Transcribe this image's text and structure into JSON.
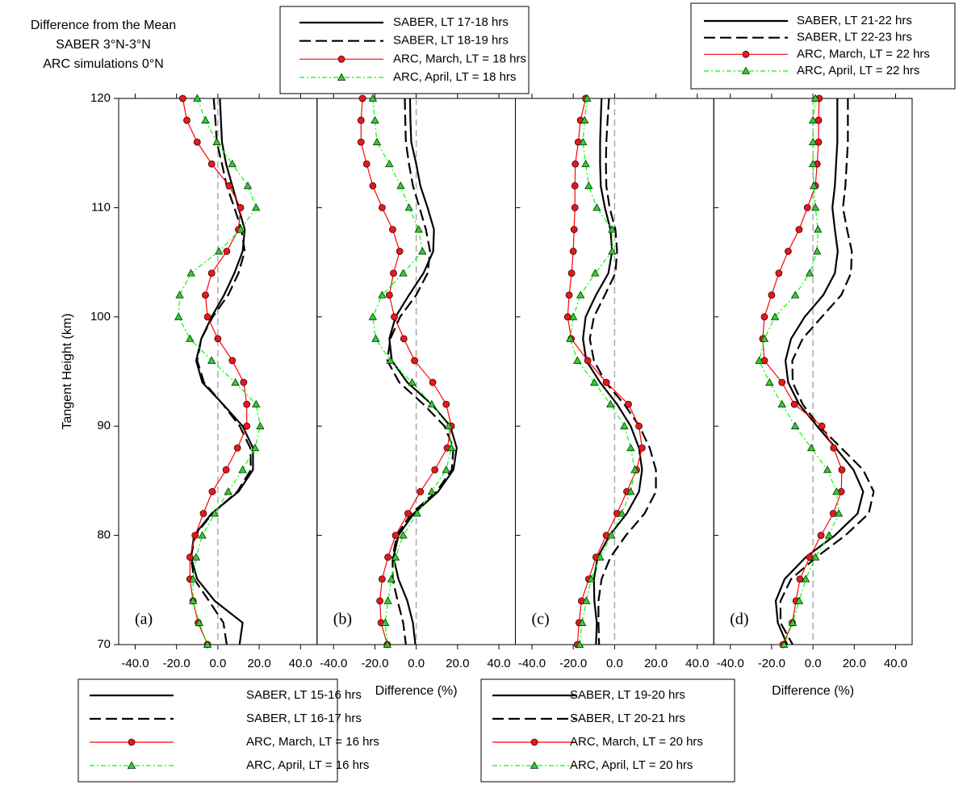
{
  "chart_data": [
    {
      "type": "line",
      "panel_label": "(a)",
      "title_lines": [
        "Difference from the Mean",
        "SABER 3°N-3°N",
        "ARC simulations 0°N"
      ],
      "ylabel": "Tangent Height (km)",
      "xlabel": "Difference (%)",
      "xlim": [
        -48,
        48
      ],
      "ylim": [
        70,
        120
      ],
      "xticks": [
        {
          "value": -40,
          "label": "-40.0"
        },
        {
          "value": -20,
          "label": "-20.0"
        },
        {
          "value": 0,
          "label": "0.0"
        },
        {
          "value": 20,
          "label": "20.0"
        },
        {
          "value": 40,
          "label": "40.0"
        }
      ],
      "yticks": [
        70,
        80,
        90,
        100,
        110,
        120
      ],
      "zero_line": true,
      "legend": "bottom",
      "y": [
        120,
        118,
        116,
        114,
        112,
        110,
        108,
        106,
        104,
        102,
        100,
        98,
        96,
        94,
        92,
        90,
        88,
        86,
        84,
        82,
        80,
        78,
        76,
        74,
        72,
        70
      ],
      "series": [
        {
          "name": "SABER, LT 15-16 hrs",
          "color": "#000000",
          "dash": "solid",
          "marker": "none",
          "values": [
            1,
            1.5,
            2,
            4,
            7,
            10,
            13,
            12,
            8,
            3,
            -3,
            -8,
            -10.5,
            -7.5,
            2.5,
            12,
            17,
            17,
            10,
            -3,
            -11.5,
            -13,
            -10,
            -1.5,
            12,
            10.5
          ]
        },
        {
          "name": "SABER, LT 16-17 hrs",
          "color": "#000000",
          "dash": "dashed",
          "marker": "none",
          "values": [
            -2,
            -1.2,
            -0.5,
            2,
            4.3,
            8,
            11.4,
            13,
            10,
            5,
            -2.5,
            -8,
            -10,
            -6.7,
            2.4,
            10.6,
            15.7,
            16,
            9.4,
            -2.7,
            -11,
            -13,
            -11.5,
            -4.3,
            2.7,
            4.3
          ]
        },
        {
          "name": "ARC, March, LT = 16 hrs",
          "color": "#ff0000",
          "dash": "solid",
          "marker": "circle",
          "values": [
            -17,
            -15,
            -10,
            -3,
            5.5,
            11,
            10,
            4.3,
            -3,
            -6,
            -5,
            0,
            7,
            12.5,
            14,
            14,
            9.5,
            4,
            -2.7,
            -7,
            -11,
            -13.5,
            -13.5,
            -12,
            -9.5,
            -5
          ]
        },
        {
          "name": "ARC, April, LT = 16 hrs",
          "color": "#00ff00",
          "dash": "dashdot",
          "marker": "triangle",
          "values": [
            -10,
            -6,
            -0.5,
            7,
            14.5,
            18.5,
            11,
            0.5,
            -13,
            -18.5,
            -19,
            -13.5,
            -3,
            8.5,
            18.5,
            20.5,
            18,
            12,
            5,
            -1.5,
            -7.5,
            -10.5,
            -12,
            -12,
            -9,
            -5
          ]
        }
      ]
    },
    {
      "type": "line",
      "panel_label": "(b)",
      "xlabel": "Difference (%)",
      "xlim": [
        -48,
        48
      ],
      "ylim": [
        70,
        120
      ],
      "xticks": [
        {
          "value": -40,
          "label": "-40.0"
        },
        {
          "value": -20,
          "label": "-20.0"
        },
        {
          "value": 0,
          "label": "0.0"
        },
        {
          "value": 20,
          "label": "20.0"
        },
        {
          "value": 40,
          "label": "40.0"
        }
      ],
      "zero_line": true,
      "legend": "top",
      "y": [
        120,
        118,
        116,
        114,
        112,
        110,
        108,
        106,
        104,
        102,
        100,
        98,
        96,
        94,
        92,
        90,
        88,
        86,
        84,
        82,
        80,
        78,
        76,
        74,
        72,
        70
      ],
      "series": [
        {
          "name": "SABER, LT 17-18 hrs",
          "color": "#000000",
          "dash": "solid",
          "marker": "none",
          "values": [
            -3,
            -2.8,
            -2.4,
            0,
            2,
            5.5,
            8.6,
            8.2,
            3.5,
            -3.5,
            -10,
            -13,
            -11.8,
            -4.3,
            7.5,
            16.5,
            19.6,
            18,
            10.6,
            -1.2,
            -8.6,
            -11,
            -8.6,
            -4.3,
            -1.6,
            -0.4
          ]
        },
        {
          "name": "SABER, LT 18-19 hrs",
          "color": "#000000",
          "dash": "dashed",
          "marker": "none",
          "values": [
            -5.5,
            -5.3,
            -5,
            -3.5,
            -1.6,
            1.6,
            4.7,
            6.7,
            5.5,
            0,
            -7.8,
            -12.5,
            -14,
            -8.2,
            3.5,
            13.7,
            18,
            17.2,
            9.8,
            -2.4,
            -9.4,
            -11.4,
            -11.4,
            -9,
            -6.3,
            -5
          ]
        },
        {
          "name": "ARC, March, LT = 18 hrs",
          "color": "#ff0000",
          "dash": "solid",
          "marker": "circle",
          "values": [
            -26,
            -26.7,
            -26.7,
            -24,
            -21,
            -16.5,
            -11.4,
            -8,
            -11,
            -13,
            -10.6,
            -6,
            -0.8,
            8,
            14.5,
            17,
            15,
            9,
            2,
            -4,
            -10,
            -13.7,
            -16.5,
            -17.6,
            -17,
            -14
          ]
        },
        {
          "name": "ARC, April, LT = 18 hrs",
          "color": "#00ff00",
          "dash": "dashdot",
          "marker": "triangle",
          "values": [
            -21,
            -20,
            -19,
            -13,
            -7.5,
            -3.5,
            1.2,
            3,
            -6.3,
            -16.5,
            -21,
            -19.6,
            -12.5,
            -2,
            7.5,
            15.7,
            17,
            14.5,
            7.5,
            0.4,
            -6.3,
            -10,
            -12,
            -13.7,
            -15,
            -14
          ]
        }
      ]
    },
    {
      "type": "line",
      "panel_label": "(c)",
      "xlabel": "Difference (%)",
      "xlim": [
        -48,
        48
      ],
      "ylim": [
        70,
        120
      ],
      "xticks": [
        {
          "value": -40,
          "label": "-40.0"
        },
        {
          "value": -20,
          "label": "-20.0"
        },
        {
          "value": 0,
          "label": "0.0"
        },
        {
          "value": 20,
          "label": "20.0"
        },
        {
          "value": 40,
          "label": "40.0"
        }
      ],
      "zero_line": true,
      "legend": "bottom",
      "y": [
        120,
        118,
        116,
        114,
        112,
        110,
        108,
        106,
        104,
        102,
        100,
        98,
        96,
        94,
        92,
        90,
        88,
        86,
        84,
        82,
        80,
        78,
        76,
        74,
        72,
        70
      ],
      "series": [
        {
          "name": "SABER, LT 19-20 hrs",
          "color": "#000000",
          "dash": "solid",
          "marker": "none",
          "values": [
            -6.3,
            -6.7,
            -7,
            -7,
            -6.7,
            -4.7,
            -2,
            -1.2,
            -3,
            -9,
            -14,
            -15.3,
            -13.7,
            -7,
            1.2,
            7.8,
            11.8,
            13.3,
            11.8,
            5.9,
            -2.4,
            -8.2,
            -10,
            -9.8,
            -8.6,
            -9
          ]
        },
        {
          "name": "SABER, LT 20-21 hrs",
          "color": "#000000",
          "dash": "dashed",
          "marker": "none",
          "values": [
            -2.7,
            -3.4,
            -4,
            -4.2,
            -4,
            -2.4,
            0.4,
            1.2,
            0.4,
            -4.7,
            -10,
            -12,
            -10,
            -4.3,
            4.7,
            12,
            17,
            20,
            20,
            14.5,
            5.5,
            -2,
            -6.3,
            -7.8,
            -7.8,
            -7.5
          ]
        },
        {
          "name": "ARC, March, LT = 20 hrs",
          "color": "#ff0000",
          "dash": "solid",
          "marker": "circle",
          "values": [
            -14,
            -16.5,
            -17.6,
            -19,
            -19.2,
            -19.2,
            -19.6,
            -20,
            -20.8,
            -22,
            -22.7,
            -21,
            -13,
            -4,
            6.7,
            11.8,
            13.3,
            10.6,
            5.9,
            1.2,
            -4,
            -9,
            -12.5,
            -16,
            -17.2,
            -18
          ]
        },
        {
          "name": "ARC, April, LT = 20 hrs",
          "color": "#00ff00",
          "dash": "dashdot",
          "marker": "triangle",
          "values": [
            -13.3,
            -14.5,
            -15.3,
            -14,
            -12.5,
            -8.6,
            -1.2,
            -1.2,
            -9.4,
            -16.5,
            -20,
            -21.5,
            -18,
            -9.8,
            -2,
            4.7,
            7.8,
            9.8,
            7.8,
            3.5,
            -1.6,
            -7,
            -11.4,
            -13.7,
            -15.7,
            -16.9
          ]
        }
      ]
    },
    {
      "type": "line",
      "panel_label": "(d)",
      "xlabel": "Difference (%)",
      "xlim": [
        -48,
        48
      ],
      "ylim": [
        70,
        120
      ],
      "xticks": [
        {
          "value": -40,
          "label": "-40.0"
        },
        {
          "value": -20,
          "label": "-20.0"
        },
        {
          "value": 0,
          "label": "0.0"
        },
        {
          "value": 20,
          "label": "20.0"
        },
        {
          "value": 40,
          "label": "40.0"
        }
      ],
      "zero_line": true,
      "legend": "top",
      "y": [
        120,
        118,
        116,
        114,
        112,
        110,
        108,
        106,
        104,
        102,
        100,
        98,
        96,
        94,
        92,
        90,
        88,
        86,
        84,
        82,
        80,
        78,
        76,
        74,
        72,
        70
      ],
      "series": [
        {
          "name": "SABER, LT 21-22 hrs",
          "color": "#000000",
          "dash": "solid",
          "marker": "none",
          "values": [
            11.8,
            11.8,
            11.8,
            11.2,
            10.6,
            9.4,
            10.6,
            12,
            10.6,
            5,
            -4,
            -10.6,
            -13.3,
            -12,
            -6.7,
            2,
            11,
            19.6,
            24.3,
            21.6,
            10.6,
            -3.5,
            -13.7,
            -18,
            -17,
            -12.5
          ]
        },
        {
          "name": "SABER, LT 22-23 hrs",
          "color": "#000000",
          "dash": "dashed",
          "marker": "none",
          "values": [
            16.9,
            16.9,
            16.9,
            16.3,
            15.7,
            14.5,
            16.5,
            18.8,
            18.4,
            13.7,
            4.3,
            -5,
            -10,
            -9.8,
            -5,
            3,
            13.7,
            24.3,
            29.4,
            27,
            15.7,
            1.6,
            -10.6,
            -15.7,
            -15.7,
            -9.8
          ]
        },
        {
          "name": "ARC, March, LT = 22 hrs",
          "color": "#ff0000",
          "dash": "solid",
          "marker": "circle",
          "values": [
            3,
            2.7,
            2.7,
            2,
            1.2,
            -2.7,
            -6.7,
            -12,
            -16.5,
            -20,
            -23.5,
            -24.3,
            -23.5,
            -15,
            -9,
            4.3,
            10,
            14,
            13.7,
            9.8,
            3.9,
            -1.6,
            -6.3,
            -8.2,
            -10,
            -14.5
          ]
        },
        {
          "name": "ARC, April, LT = 22 hrs",
          "color": "#00ff00",
          "dash": "dashdot",
          "marker": "triangle",
          "values": [
            1.2,
            0,
            0,
            0,
            0.4,
            1.2,
            2.4,
            2,
            -1.6,
            -8.6,
            -18.4,
            -23.5,
            -26,
            -21,
            -15,
            -8.6,
            -0.8,
            7,
            11.4,
            12.5,
            7.8,
            1.2,
            -3.5,
            -6.7,
            -9.8,
            -14
          ]
        }
      ]
    }
  ]
}
